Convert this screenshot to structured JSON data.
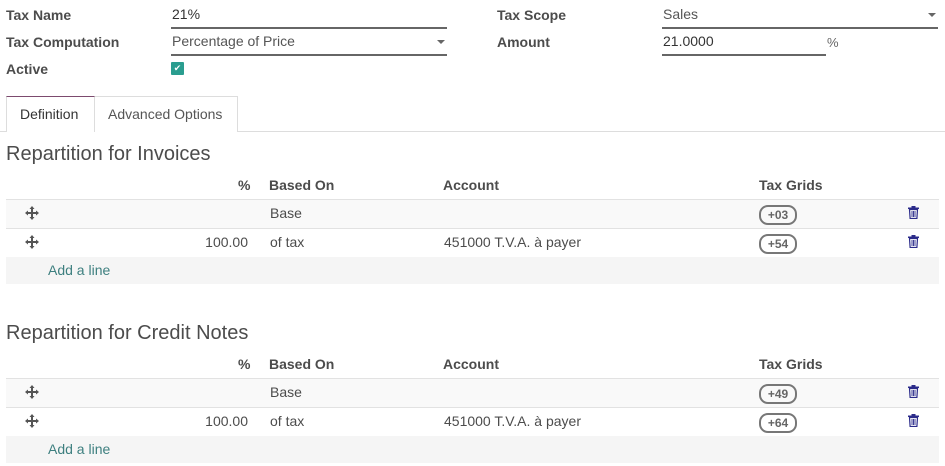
{
  "form": {
    "tax_name_label": "Tax Name",
    "tax_name_value": "21%",
    "tax_computation_label": "Tax Computation",
    "tax_computation_value": "Percentage of Price",
    "active_label": "Active",
    "active_checked": true,
    "tax_scope_label": "Tax Scope",
    "tax_scope_value": "Sales",
    "amount_label": "Amount",
    "amount_value": "21.0000",
    "amount_unit": "%"
  },
  "tabs": [
    {
      "label": "Definition",
      "active": true
    },
    {
      "label": "Advanced Options",
      "active": false
    }
  ],
  "columns": {
    "percent": "%",
    "based_on": "Based On",
    "account": "Account",
    "tax_grids": "Tax Grids"
  },
  "invoices": {
    "title": "Repartition for Invoices",
    "rows": [
      {
        "percent": "",
        "based_on": "Base",
        "account": "",
        "tax_grid": "+03"
      },
      {
        "percent": "100.00",
        "based_on": "of tax",
        "account": "451000 T.V.A. à payer",
        "tax_grid": "+54"
      }
    ],
    "add_line": "Add a line"
  },
  "credit_notes": {
    "title": "Repartition for Credit Notes",
    "rows": [
      {
        "percent": "",
        "based_on": "Base",
        "account": "",
        "tax_grid": "+49"
      },
      {
        "percent": "100.00",
        "based_on": "of tax",
        "account": "451000 T.V.A. à payer",
        "tax_grid": "+64"
      }
    ],
    "add_line": "Add a line"
  },
  "colors": {
    "accent": "#2a9d8f",
    "tab_active_border": "#7c4a6e",
    "link": "#3d7f7f",
    "trash": "#2b2b8a"
  }
}
